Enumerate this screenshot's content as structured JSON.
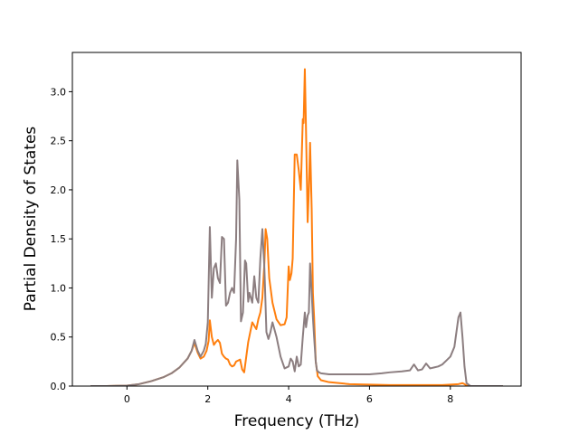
{
  "chart_data": {
    "type": "line",
    "title": "",
    "xlabel": "Frequency (THz)",
    "ylabel": "Partial Density of States",
    "xlim": [
      -1.35,
      9.75
    ],
    "ylim": [
      0.0,
      3.4
    ],
    "xticks": [
      0,
      2,
      4,
      6,
      8
    ],
    "xtick_labels": [
      "0",
      "2",
      "4",
      "6",
      "8"
    ],
    "yticks": [
      0.0,
      0.5,
      1.0,
      1.5,
      2.0,
      2.5,
      3.0
    ],
    "ytick_labels": [
      "0.0",
      "0.5",
      "1.0",
      "1.5",
      "2.0",
      "2.5",
      "3.0"
    ],
    "grid": false,
    "series": [
      {
        "color": "#ff7f0e",
        "x": [
          -0.9,
          -0.5,
          0.0,
          0.3,
          0.6,
          0.9,
          1.1,
          1.3,
          1.5,
          1.6,
          1.67,
          1.75,
          1.82,
          1.9,
          1.97,
          2.02,
          2.05,
          2.1,
          2.15,
          2.2,
          2.25,
          2.3,
          2.35,
          2.4,
          2.45,
          2.5,
          2.55,
          2.6,
          2.65,
          2.7,
          2.75,
          2.8,
          2.85,
          2.9,
          3.0,
          3.1,
          3.2,
          3.25,
          3.3,
          3.35,
          3.4,
          3.43,
          3.47,
          3.52,
          3.6,
          3.7,
          3.8,
          3.9,
          3.95,
          4.0,
          4.03,
          4.07,
          4.1,
          4.15,
          4.2,
          4.25,
          4.3,
          4.35,
          4.37,
          4.4,
          4.43,
          4.47,
          4.5,
          4.53,
          4.57,
          4.6,
          4.63,
          4.67,
          4.72,
          4.8,
          5.0,
          5.5,
          6.0,
          6.5,
          7.0,
          7.5,
          7.8,
          8.0,
          8.2,
          8.3,
          8.35,
          8.4,
          8.5,
          9.3
        ],
        "values": [
          0.0,
          0.0,
          0.005,
          0.02,
          0.05,
          0.09,
          0.13,
          0.19,
          0.28,
          0.36,
          0.44,
          0.34,
          0.28,
          0.3,
          0.36,
          0.46,
          0.67,
          0.5,
          0.42,
          0.45,
          0.47,
          0.44,
          0.33,
          0.3,
          0.28,
          0.27,
          0.22,
          0.2,
          0.21,
          0.25,
          0.26,
          0.27,
          0.17,
          0.14,
          0.45,
          0.65,
          0.58,
          0.68,
          0.75,
          0.9,
          1.25,
          1.6,
          1.5,
          1.1,
          0.85,
          0.68,
          0.62,
          0.63,
          0.7,
          1.22,
          1.08,
          1.15,
          1.3,
          2.36,
          2.36,
          2.2,
          2.0,
          2.72,
          2.68,
          3.23,
          2.6,
          1.67,
          2.0,
          2.48,
          1.8,
          0.95,
          0.7,
          0.25,
          0.1,
          0.06,
          0.04,
          0.02,
          0.015,
          0.01,
          0.01,
          0.01,
          0.01,
          0.015,
          0.02,
          0.03,
          0.02,
          0.005,
          0.0,
          0.0
        ]
      },
      {
        "color": "#8c7e80",
        "x": [
          -0.9,
          -0.5,
          0.0,
          0.3,
          0.6,
          0.9,
          1.1,
          1.3,
          1.5,
          1.6,
          1.67,
          1.75,
          1.82,
          1.9,
          1.95,
          2.0,
          2.05,
          2.1,
          2.15,
          2.2,
          2.25,
          2.3,
          2.35,
          2.4,
          2.45,
          2.5,
          2.55,
          2.6,
          2.65,
          2.7,
          2.73,
          2.78,
          2.82,
          2.87,
          2.92,
          2.95,
          3.0,
          3.03,
          3.1,
          3.15,
          3.2,
          3.25,
          3.3,
          3.35,
          3.4,
          3.45,
          3.5,
          3.55,
          3.6,
          3.7,
          3.8,
          3.9,
          4.0,
          4.05,
          4.1,
          4.15,
          4.2,
          4.25,
          4.3,
          4.35,
          4.4,
          4.43,
          4.47,
          4.5,
          4.53,
          4.57,
          4.6,
          4.63,
          4.67,
          4.7,
          4.75,
          4.8,
          5.0,
          5.2,
          5.5,
          6.0,
          6.3,
          6.5,
          6.8,
          7.0,
          7.1,
          7.2,
          7.3,
          7.4,
          7.5,
          7.6,
          7.7,
          7.8,
          7.9,
          8.0,
          8.1,
          8.15,
          8.2,
          8.25,
          8.3,
          8.35,
          8.4,
          8.5,
          9.3
        ],
        "values": [
          0.0,
          0.0,
          0.005,
          0.02,
          0.05,
          0.09,
          0.13,
          0.19,
          0.28,
          0.36,
          0.47,
          0.36,
          0.3,
          0.36,
          0.43,
          0.65,
          1.62,
          0.9,
          1.2,
          1.25,
          1.1,
          1.05,
          1.52,
          1.5,
          0.82,
          0.85,
          0.95,
          1.0,
          0.95,
          1.5,
          2.3,
          1.9,
          0.66,
          0.75,
          1.28,
          1.25,
          0.86,
          0.95,
          0.85,
          1.12,
          0.9,
          0.85,
          1.3,
          1.6,
          1.2,
          0.55,
          0.48,
          0.55,
          0.65,
          0.5,
          0.3,
          0.18,
          0.2,
          0.28,
          0.25,
          0.15,
          0.3,
          0.2,
          0.22,
          0.5,
          0.75,
          0.6,
          0.72,
          0.75,
          1.25,
          0.95,
          0.7,
          0.5,
          0.25,
          0.16,
          0.14,
          0.13,
          0.12,
          0.12,
          0.12,
          0.12,
          0.13,
          0.14,
          0.15,
          0.16,
          0.22,
          0.16,
          0.17,
          0.23,
          0.18,
          0.19,
          0.2,
          0.22,
          0.26,
          0.3,
          0.4,
          0.55,
          0.7,
          0.75,
          0.5,
          0.2,
          0.03,
          0.0,
          0.0
        ]
      }
    ]
  }
}
